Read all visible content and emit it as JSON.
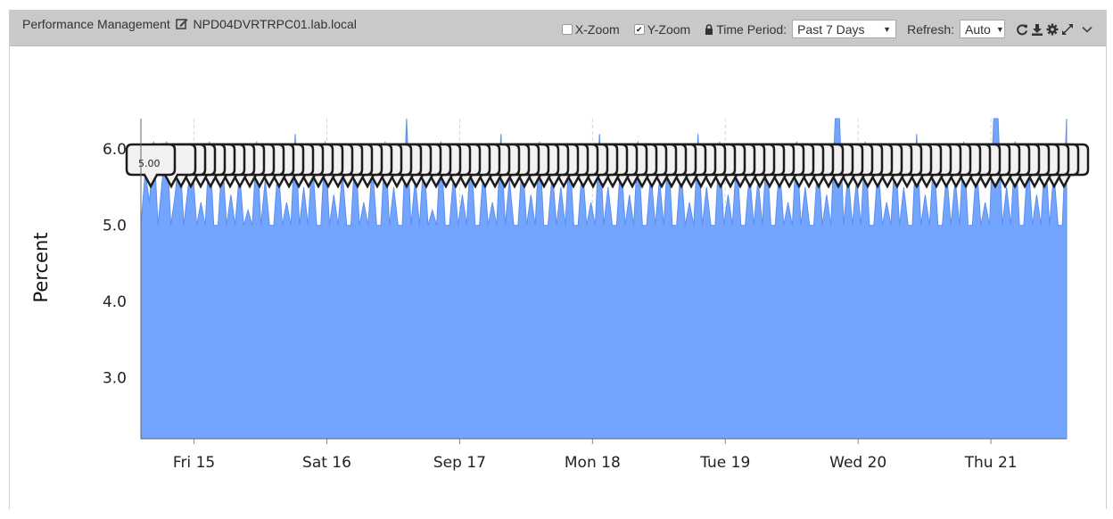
{
  "header": {
    "title": "Performance Management",
    "host": "NPD04DVRTRPC01.lab.local",
    "xzoom_label": "X-Zoom",
    "xzoom_checked": false,
    "yzoom_label": "Y-Zoom",
    "yzoom_checked": true,
    "time_period_label": "Time Period:",
    "time_period_value": "Past 7 Days",
    "refresh_label": "Refresh:",
    "refresh_value": "Auto"
  },
  "chart_data": {
    "type": "area",
    "ylabel": "Percent",
    "xlabel": "",
    "ylim": [
      2.2,
      6.4
    ],
    "yticks": [
      3.0,
      4.0,
      5.0,
      6.0
    ],
    "ytick_labels": [
      "3.0",
      "4.0",
      "5.0",
      "6.0"
    ],
    "x_ticks": [
      "Fri 15",
      "Sat 16",
      "Sep 17",
      "Mon 18",
      "Tue 19",
      "Wed 20",
      "Thu 21"
    ],
    "x_range_days": [
      -0.4,
      6.57
    ],
    "grid": true,
    "fill_color": "#73a5ff",
    "line_color": "#5b8ff0",
    "baseline": 5.0,
    "peak_values": [
      6.1,
      6.2,
      6.4
    ],
    "tooltip_value": "5.00",
    "series": [
      {
        "values": [
          5.0,
          5.7,
          5.3,
          6.1,
          5.0,
          5.6,
          6.1,
          5.0,
          5.4,
          6.0,
          5.0,
          5.5,
          5.8,
          5.0,
          5.3,
          5.0,
          6.1,
          5.0,
          5.0,
          5.9,
          5.0,
          5.4,
          5.0,
          5.7,
          5.0,
          5.2,
          5.0,
          6.1,
          5.0,
          5.6,
          5.0,
          5.0,
          5.8,
          5.0,
          5.3,
          5.0,
          6.2,
          5.0,
          5.5,
          5.0,
          5.9,
          5.0,
          5.0,
          6.1,
          5.0,
          5.4,
          5.0,
          5.7,
          5.0,
          5.0,
          6.0,
          5.0,
          5.3,
          5.0,
          5.8,
          5.0,
          5.0,
          6.1,
          5.0,
          5.5,
          5.0,
          5.0,
          6.4,
          5.0,
          5.6,
          5.0,
          5.9,
          5.0,
          5.2,
          5.0,
          6.1,
          5.0,
          5.0,
          5.7,
          5.0,
          5.4,
          5.0,
          6.0,
          5.0,
          5.0,
          5.8,
          5.0,
          5.3,
          5.0,
          6.2,
          5.0,
          5.6,
          5.0,
          5.0,
          5.9,
          5.0,
          5.4,
          5.0,
          6.1,
          5.0,
          5.0,
          5.7,
          5.0,
          5.5,
          5.0,
          6.0,
          5.0,
          5.0,
          5.8,
          5.0,
          5.3,
          5.0,
          6.2,
          5.0,
          5.5,
          5.0,
          5.0,
          5.9,
          5.0,
          5.4,
          5.0,
          6.1,
          5.0,
          5.0,
          5.7,
          5.0,
          5.6,
          5.0,
          6.0,
          5.0,
          5.0,
          5.8,
          5.0,
          5.3,
          5.0,
          6.2,
          5.0,
          5.5,
          5.0,
          5.0,
          6.1,
          5.0,
          5.4,
          5.0,
          5.9,
          5.0,
          5.0,
          5.7,
          5.0,
          5.6,
          5.0,
          6.0,
          5.0,
          5.0,
          5.8,
          5.0,
          5.3,
          5.0,
          6.1,
          5.0,
          5.5,
          5.0,
          5.0,
          5.9,
          5.0,
          5.4,
          5.0,
          6.4,
          6.4,
          5.0,
          5.7,
          5.0,
          5.6,
          5.0,
          6.1,
          5.0,
          5.0,
          5.8,
          5.0,
          5.3,
          5.0,
          6.0,
          5.0,
          5.5,
          5.0,
          5.0,
          6.2,
          5.0,
          5.4,
          5.0,
          5.9,
          5.0,
          5.0,
          5.7,
          5.0,
          5.6,
          5.0,
          6.1,
          5.0,
          5.0,
          5.8,
          5.0,
          5.3,
          5.0,
          6.4,
          6.4,
          5.0,
          5.5,
          5.0,
          6.1,
          5.0,
          5.0,
          5.9,
          5.0,
          5.4,
          5.0,
          6.0,
          5.0,
          5.7,
          5.0,
          5.0,
          6.4
        ]
      }
    ]
  }
}
